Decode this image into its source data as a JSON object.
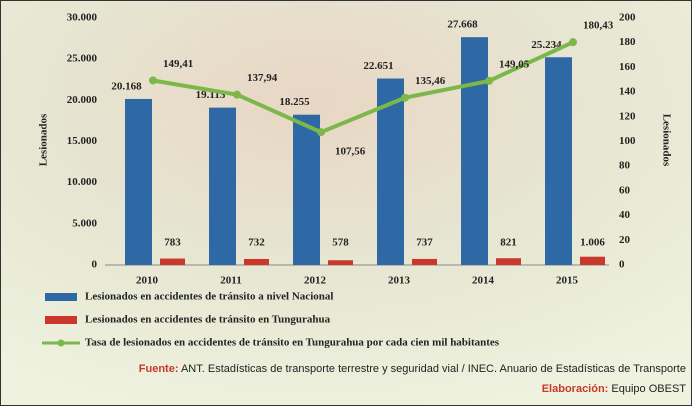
{
  "chart_data": {
    "type": "bar-line",
    "y_label": "Lesionados",
    "y2_label": "Lesionados",
    "categories": [
      "2010",
      "2011",
      "2012",
      "2013",
      "2014",
      "2015"
    ],
    "series": [
      {
        "name": "Lesionados en accidentes de tránsito a nivel Nacional",
        "type": "bar",
        "color": "#2e69a6",
        "values": [
          20168,
          19113,
          18255,
          22651,
          27668,
          25234
        ],
        "value_labels": [
          "20.168",
          "19.113",
          "18.255",
          "22.651",
          "27.668",
          "25.234"
        ]
      },
      {
        "name": "Lesionados en accidentes de tránsito en Tungurahua",
        "type": "bar",
        "color": "#c9382b",
        "values": [
          783,
          732,
          578,
          737,
          821,
          1006
        ],
        "value_labels": [
          "783",
          "732",
          "578",
          "737",
          "821",
          "1.006"
        ]
      },
      {
        "name": "Tasa de lesionados en accidentes de tránsito en Tungurahua por cada cien mil habitantes",
        "type": "line",
        "axis": "y2",
        "color": "#7cb74a",
        "values": [
          149.41,
          137.94,
          107.56,
          135.46,
          149.05,
          180.43
        ],
        "value_labels": [
          "149,41",
          "137,94",
          "107,56",
          "135,46",
          "149,05",
          "180,43"
        ]
      }
    ],
    "ylim": [
      0,
      30000
    ],
    "yticks": [
      0,
      {
        "value": 5000,
        "label": "5.000"
      },
      {
        "value": 10000,
        "label": "10.000"
      },
      {
        "value": 15000,
        "label": "15.000"
      },
      {
        "value": 20000,
        "label": "20.000"
      },
      {
        "value": 25000,
        "label": "25.000"
      },
      {
        "value": 30000,
        "label": "30.000"
      }
    ],
    "y2lim": [
      0,
      200
    ],
    "y2ticks": [
      0,
      20,
      40,
      60,
      80,
      100,
      120,
      140,
      160,
      180,
      200
    ]
  },
  "footer": {
    "source_label": "Fuente:",
    "source_text": "ANT. Estadísticas de transporte terrestre y seguridad vial / INEC. Anuario de Estadísticas de Transporte",
    "credit_label": "Elaboración:",
    "credit_text": "Equipo OBEST"
  }
}
